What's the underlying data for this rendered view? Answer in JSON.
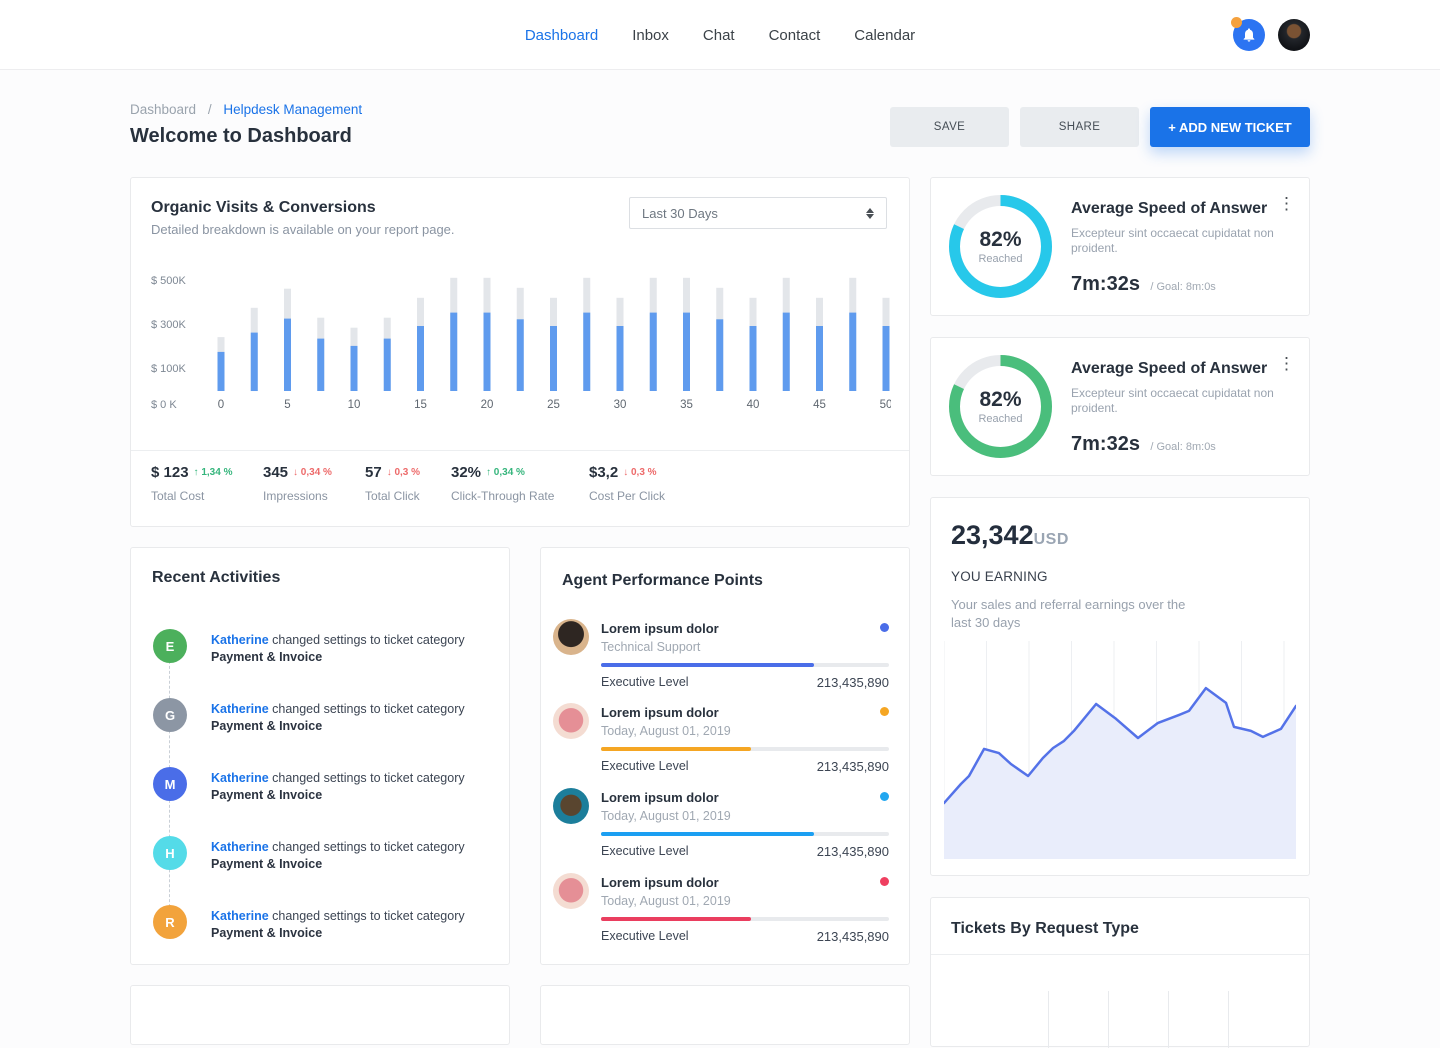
{
  "colors": {
    "accent": "#1a73e8",
    "bar_total": "#e3e6ea",
    "bar_reached": "#5f9bee",
    "area_line": "#5472e8",
    "area_fill": "#e9edfb",
    "delta_up": "#35b57c",
    "delta_down": "#ed6a6a",
    "donut_track": "#e8eaed"
  },
  "header": {
    "nav": [
      {
        "label": "Dashboard",
        "active": true
      },
      {
        "label": "Inbox",
        "active": false
      },
      {
        "label": "Chat",
        "active": false
      },
      {
        "label": "Contact",
        "active": false
      },
      {
        "label": "Calendar",
        "active": false
      }
    ],
    "bell_icon": "notification-bell",
    "bell_color": "#2c74f2",
    "bell_badge_color": "#f5a13d"
  },
  "page": {
    "breadcrumb": {
      "parent": "Dashboard",
      "separator": "/",
      "current": "Helpdesk Management"
    },
    "title": "Welcome to Dashboard",
    "save_label": "SAVE",
    "share_label": "SHARE",
    "add_label": "+ ADD NEW TICKET"
  },
  "organic": {
    "title": "Organic Visits & Conversions",
    "subtitle": "Detailed breakdown is available on your report page.",
    "range_label": "Last 30 Days",
    "chart_data": {
      "type": "bar",
      "x_start": 0,
      "x_step": 2.5,
      "x_tick_labels": [
        "0",
        "5",
        "10",
        "15",
        "20",
        "25",
        "30",
        "35",
        "40",
        "45",
        "50"
      ],
      "y_tick_labels": [
        "$ 500K",
        "$ 300K",
        "$ 100K",
        "$ 0 K"
      ],
      "ylim": [
        0,
        500
      ],
      "unit": "K USD",
      "series": [
        {
          "name": "total",
          "values": [
            243,
            375,
            461,
            330,
            285,
            330,
            420,
            510,
            510,
            465,
            420,
            510,
            420,
            510,
            510,
            465,
            420,
            510,
            420,
            510,
            420
          ]
        },
        {
          "name": "reached",
          "values": [
            176,
            263,
            326,
            236,
            203,
            236,
            293,
            353,
            353,
            323,
            293,
            353,
            293,
            353,
            353,
            323,
            293,
            353,
            293,
            353,
            293
          ]
        }
      ]
    },
    "stats": [
      {
        "value": "$ 123",
        "delta": "1,34 %",
        "dir": "up",
        "label": "Total Cost"
      },
      {
        "value": "345",
        "delta": "0,34 %",
        "dir": "down",
        "label": "Impressions"
      },
      {
        "value": "57",
        "delta": "0,3 %",
        "dir": "down",
        "label": "Total Click"
      },
      {
        "value": "32%",
        "delta": "0,34 %",
        "dir": "up",
        "label": "Click-Through Rate"
      },
      {
        "value": "$3,2",
        "delta": "0,3 %",
        "dir": "down",
        "label": "Cost Per Click"
      }
    ]
  },
  "recent": {
    "title": "Recent Activities",
    "items": [
      {
        "initial": "E",
        "color": "#4cb05c",
        "actor": "Katherine",
        "action": "changed settings to ticket category",
        "category": "Payment & Invoice"
      },
      {
        "initial": "G",
        "color": "#8c96a4",
        "actor": "Katherine",
        "action": "changed settings to ticket category",
        "category": "Payment & Invoice"
      },
      {
        "initial": "M",
        "color": "#4a6de8",
        "actor": "Katherine",
        "action": "changed settings to ticket category",
        "category": "Payment & Invoice"
      },
      {
        "initial": "H",
        "color": "#54dbe8",
        "actor": "Katherine",
        "action": "changed settings to ticket category",
        "category": "Payment & Invoice"
      },
      {
        "initial": "R",
        "color": "#f2a33c",
        "actor": "Katherine",
        "action": "changed settings to ticket category",
        "category": "Payment & Invoice"
      }
    ]
  },
  "agents": {
    "title": "Agent Performance Points",
    "items": [
      {
        "name": "Lorem ipsum dolor",
        "sub": "Technical Support",
        "dot_color": "#4a6de8",
        "bar_color": "#4a6de8",
        "percent": 74,
        "level_label": "Executive Level",
        "points": "213,435,890"
      },
      {
        "name": "Lorem ipsum dolor",
        "sub": "Today, August 01, 2019",
        "dot_color": "#f5a623",
        "bar_color": "#f5a623",
        "percent": 52,
        "level_label": "Executive Level",
        "points": "213,435,890"
      },
      {
        "name": "Lorem ipsum dolor",
        "sub": "Today, August 01, 2019",
        "dot_color": "#22a7f0",
        "bar_color": "#1b9ff2",
        "percent": 74,
        "level_label": "Executive Level",
        "points": "213,435,890"
      },
      {
        "name": "Lorem ipsum dolor",
        "sub": "Today, August 01, 2019",
        "dot_color": "#ef3f60",
        "bar_color": "#ea3e5f",
        "percent": 52,
        "level_label": "Executive Level",
        "points": "213,435,890"
      }
    ]
  },
  "speed_cards": [
    {
      "title": "Average Speed of Answer",
      "menu_icon": "⋮",
      "desc": "Excepteur sint occaecat cupidatat non proident.",
      "percent_text": "82%",
      "percent_value": 82,
      "reached_label": "Reached",
      "time": "7m:32s",
      "goal": "/ Goal: 8m:0s",
      "ring_color": "#27c8ea",
      "chart_data": {
        "type": "pie",
        "categories": [
          "Reached",
          "Remaining"
        ],
        "values": [
          82,
          18
        ]
      }
    },
    {
      "title": "Average Speed of Answer",
      "menu_icon": "⋮",
      "desc": "Excepteur sint occaecat cupidatat non proident.",
      "percent_text": "82%",
      "percent_value": 82,
      "reached_label": "Reached",
      "time": "7m:32s",
      "goal": "/ Goal: 8m:0s",
      "ring_color": "#4abe7c",
      "chart_data": {
        "type": "pie",
        "categories": [
          "Reached",
          "Remaining"
        ],
        "values": [
          82,
          18
        ]
      }
    }
  ],
  "earning": {
    "amount": "23,342",
    "currency": "USD",
    "heading": "YOU EARNING",
    "desc": "Your sales and referral earnings over the last 30 days",
    "chart_data": {
      "type": "area",
      "x_unit": "percent_of_width",
      "y_unit": "percent_from_top",
      "grid": "vertical",
      "points": [
        [
          0,
          73
        ],
        [
          4.8,
          64.4
        ],
        [
          7.1,
          60.8
        ],
        [
          11.4,
          48.6
        ],
        [
          15.6,
          50.5
        ],
        [
          19,
          55.4
        ],
        [
          23.9,
          60.8
        ],
        [
          28.1,
          52.7
        ],
        [
          31,
          48.2
        ],
        [
          34.1,
          45
        ],
        [
          36.9,
          40.5
        ],
        [
          43.2,
          28.4
        ],
        [
          48.9,
          35.1
        ],
        [
          55.1,
          43.7
        ],
        [
          60.8,
          36.9
        ],
        [
          66.8,
          33.3
        ],
        [
          69.6,
          31.5
        ],
        [
          74.4,
          21.2
        ],
        [
          80.1,
          27.9
        ],
        [
          82.4,
          38.7
        ],
        [
          87.2,
          40.5
        ],
        [
          90.6,
          43.2
        ],
        [
          95.7,
          39.6
        ],
        [
          100,
          29.3
        ]
      ]
    }
  },
  "tickets": {
    "title": "Tickets By Request Type"
  }
}
